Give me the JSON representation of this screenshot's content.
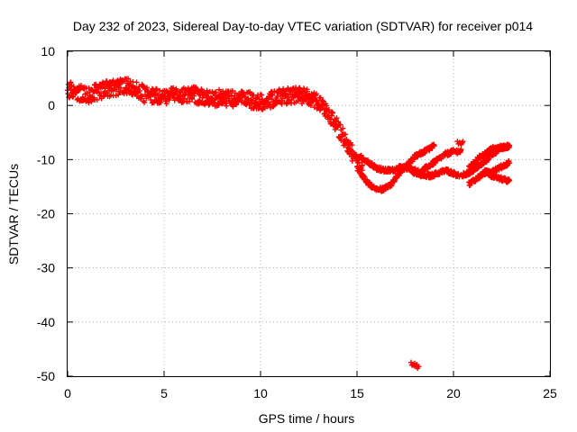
{
  "chart_data": {
    "type": "scatter",
    "title": "Day 232 of 2023, Sidereal Day-to-day VTEC variation (SDTVAR) for receiver p014",
    "xlabel": "GPS time / hours",
    "ylabel": "SDTVAR / TECUs",
    "xlim": [
      0,
      25
    ],
    "ylim": [
      -50,
      10
    ],
    "xticks": [
      0,
      5,
      10,
      15,
      20,
      25
    ],
    "yticks": [
      10,
      0,
      -10,
      -20,
      -30,
      -40,
      -50
    ],
    "grid": true,
    "marker": "+",
    "color": "#ff0000",
    "series": [
      {
        "name": "p014",
        "trend_x": [
          0.0,
          0.5,
          1.0,
          1.5,
          2.0,
          2.5,
          3.0,
          3.5,
          4.0,
          4.5,
          5.0,
          5.5,
          6.0,
          6.5,
          7.0,
          7.5,
          8.0,
          8.5,
          9.0,
          9.5,
          10.0,
          10.5,
          11.0,
          11.5,
          12.0,
          12.5,
          13.0,
          13.3,
          13.6,
          14.0,
          14.3,
          14.6,
          15.0,
          15.3
        ],
        "trend_y": [
          3.0,
          2.5,
          1.8,
          2.5,
          3.0,
          3.3,
          3.5,
          3.3,
          2.0,
          1.8,
          1.7,
          1.8,
          1.8,
          2.0,
          1.5,
          1.3,
          1.5,
          1.2,
          1.2,
          1.0,
          0.6,
          1.0,
          1.5,
          1.8,
          2.0,
          1.5,
          0.5,
          -0.5,
          -2.0,
          -4.0,
          -6.0,
          -8.0,
          -10.0,
          -11.0
        ],
        "spread": 1.5,
        "arcs": [
          {
            "x": [
              15.0,
              15.3,
              15.6,
              16.0,
              16.4,
              16.8,
              17.2,
              17.6,
              18.0,
              18.5,
              19.0
            ],
            "y": [
              -11.5,
              -13.0,
              -14.5,
              -15.5,
              -15.5,
              -14.5,
              -12.5,
              -11.0,
              -9.5,
              -8.5,
              -7.5
            ]
          },
          {
            "x": [
              15.2,
              15.6,
              16.0,
              16.4,
              16.8,
              17.2,
              17.6,
              18.0,
              18.4
            ],
            "y": [
              -9.5,
              -10.5,
              -11.5,
              -12.0,
              -12.0,
              -11.5,
              -11.5,
              -12.0,
              -12.5
            ]
          },
          {
            "x": [
              17.6,
              18.0,
              18.4,
              18.8,
              19.2,
              19.6,
              20.0,
              20.3
            ],
            "y": [
              -11.0,
              -12.5,
              -13.0,
              -13.0,
              -12.5,
              -12.0,
              -12.5,
              -13.0
            ]
          },
          {
            "x": [
              18.4,
              18.8,
              19.2,
              19.6,
              20.0,
              20.4
            ],
            "y": [
              -12.0,
              -11.0,
              -10.0,
              -9.0,
              -8.5,
              -8.5
            ]
          },
          {
            "x": [
              20.4,
              20.8,
              21.2,
              21.6,
              22.0,
              22.4,
              22.9
            ],
            "y": [
              -13.0,
              -12.5,
              -11.5,
              -10.5,
              -9.0,
              -8.0,
              -7.5
            ]
          },
          {
            "x": [
              20.8,
              21.2,
              21.6,
              22.0,
              22.4,
              22.9
            ],
            "y": [
              -11.5,
              -10.0,
              -9.0,
              -8.0,
              -7.8,
              -7.5
            ]
          },
          {
            "x": [
              20.8,
              21.2,
              21.6,
              22.0,
              22.4,
              22.9
            ],
            "y": [
              -14.5,
              -13.5,
              -12.5,
              -12.0,
              -11.5,
              -10.5
            ]
          },
          {
            "x": [
              21.6,
              22.0,
              22.4,
              22.9
            ],
            "y": [
              -12.0,
              -13.0,
              -13.5,
              -14.0
            ]
          },
          {
            "x": [
              20.2,
              20.5
            ],
            "y": [
              -7.0,
              -7.0
            ]
          },
          {
            "x": [
              17.8,
              18.0,
              18.2
            ],
            "y": [
              -47.5,
              -48.0,
              -48.5
            ]
          }
        ]
      }
    ]
  }
}
